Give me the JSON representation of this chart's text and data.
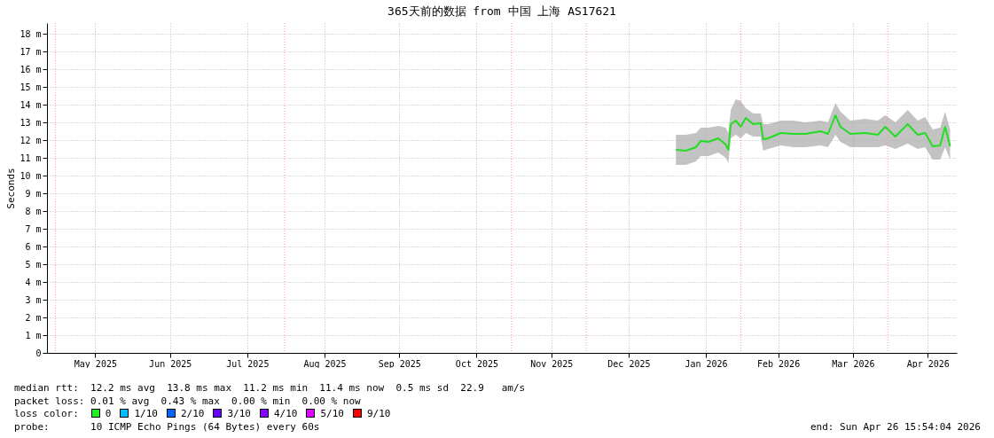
{
  "chart_data": {
    "type": "line",
    "title": "365天前的数据 from 中国 上海 AS17621",
    "ylabel": "Seconds",
    "x": [
      "2026-01-04",
      "2026-01-08",
      "2026-01-12",
      "2026-01-14",
      "2026-01-17",
      "2026-01-21",
      "2026-01-24",
      "2026-01-25",
      "2026-01-26",
      "2026-01-28",
      "2026-01-30",
      "2026-02-01",
      "2026-02-04",
      "2026-02-07",
      "2026-02-08",
      "2026-02-10",
      "2026-02-15",
      "2026-02-20",
      "2026-02-25",
      "2026-03-03",
      "2026-03-06",
      "2026-03-09",
      "2026-03-11",
      "2026-03-15",
      "2026-03-21",
      "2026-03-26",
      "2026-03-29",
      "2026-04-02",
      "2026-04-07",
      "2026-04-11",
      "2026-04-14",
      "2026-04-17",
      "2026-04-20",
      "2026-04-22",
      "2026-04-24"
    ],
    "series": [
      {
        "color": "#22dd22",
        "values": [
          11.45,
          11.4,
          11.6,
          11.95,
          11.9,
          12.1,
          11.75,
          11.45,
          12.9,
          13.1,
          12.75,
          13.25,
          12.9,
          12.95,
          12.05,
          12.1,
          12.4,
          12.35,
          12.35,
          12.5,
          12.35,
          13.4,
          12.75,
          12.35,
          12.4,
          12.3,
          12.75,
          12.2,
          12.9,
          12.3,
          12.4,
          11.65,
          11.7,
          12.75,
          11.65
        ],
        "lower": [
          10.6,
          10.6,
          10.8,
          11.1,
          11.1,
          11.3,
          11.0,
          10.7,
          12.1,
          12.3,
          12.1,
          12.4,
          12.2,
          12.2,
          11.4,
          11.5,
          11.7,
          11.6,
          11.6,
          11.7,
          11.6,
          12.3,
          11.9,
          11.6,
          11.6,
          11.6,
          11.7,
          11.5,
          11.8,
          11.5,
          11.6,
          10.9,
          10.9,
          11.6,
          10.9
        ],
        "upper": [
          12.3,
          12.3,
          12.4,
          12.7,
          12.7,
          12.8,
          12.7,
          12.4,
          13.7,
          14.3,
          14.2,
          13.8,
          13.5,
          13.5,
          12.9,
          12.9,
          13.1,
          13.1,
          13.0,
          13.1,
          13.0,
          14.1,
          13.6,
          13.1,
          13.2,
          13.1,
          13.4,
          13.0,
          13.7,
          13.1,
          13.3,
          12.6,
          12.7,
          13.6,
          12.6
        ]
      }
    ],
    "xlim": [
      "2025-04-26T15:54",
      "2026-04-26T15:54"
    ],
    "xticks": [
      {
        "value": "2025-05-16",
        "label": "May 2025"
      },
      {
        "value": "2025-06-15",
        "label": "Jun 2025"
      },
      {
        "value": "2025-07-16",
        "label": "Jul 2025"
      },
      {
        "value": "2025-08-16",
        "label": "Aug 2025"
      },
      {
        "value": "2025-09-15",
        "label": "Sep 2025"
      },
      {
        "value": "2025-10-16",
        "label": "Oct 2025"
      },
      {
        "value": "2025-11-15",
        "label": "Nov 2025"
      },
      {
        "value": "2025-12-16",
        "label": "Dec 2025"
      },
      {
        "value": "2026-01-16",
        "label": "Jan 2026"
      },
      {
        "value": "2026-02-14",
        "label": "Feb 2026"
      },
      {
        "value": "2026-03-16",
        "label": "Mar 2026"
      },
      {
        "value": "2026-04-15",
        "label": "Apr 2026"
      }
    ],
    "ylim": [
      0,
      18.6
    ],
    "yticks": [
      0,
      {
        "value": 1,
        "label": "1 m"
      },
      {
        "value": 2,
        "label": "2 m"
      },
      {
        "value": 3,
        "label": "3 m"
      },
      {
        "value": 4,
        "label": "4 m"
      },
      {
        "value": 5,
        "label": "5 m"
      },
      {
        "value": 6,
        "label": "6 m"
      },
      {
        "value": 7,
        "label": "7 m"
      },
      {
        "value": 8,
        "label": "8 m"
      },
      {
        "value": 9,
        "label": "9 m"
      },
      {
        "value": 10,
        "label": "10 m"
      },
      {
        "value": 11,
        "label": "11 m"
      },
      {
        "value": 12,
        "label": "12 m"
      },
      {
        "value": 13,
        "label": "13 m"
      },
      {
        "value": 14,
        "label": "14 m"
      },
      {
        "value": 15,
        "label": "15 m"
      },
      {
        "value": 16,
        "label": "16 m"
      },
      {
        "value": 17,
        "label": "17 m"
      },
      {
        "value": 18,
        "label": "18 m"
      }
    ],
    "ref_lines": [
      {
        "axis": "x",
        "value": "2025-04-30",
        "color": "#ff9999",
        "line_style": "dotted"
      },
      {
        "axis": "x",
        "value": "2025-07-31",
        "color": "#ff9999",
        "line_style": "dotted"
      },
      {
        "axis": "x",
        "value": "2025-10-30",
        "color": "#ff9999",
        "line_style": "dotted"
      },
      {
        "axis": "x",
        "value": "2025-11-29",
        "color": "#ff9999",
        "line_style": "dotted"
      },
      {
        "axis": "x",
        "value": "2026-01-30",
        "color": "#ff9999",
        "line_style": "dotted"
      },
      {
        "axis": "x",
        "value": "2026-03-30",
        "color": "#ff9999",
        "line_style": "dotted"
      }
    ],
    "grid": true,
    "marker": "none",
    "line_style": "solid",
    "annotations": [
      "median rtt:  12.2 ms avg  13.8 ms max  11.2 ms min  11.4 ms now  0.5 ms sd  22.9   am/s",
      "packet loss: 0.01 % avg  0.43 % max  0.00 % min  0.00 % now",
      "loss color:",
      "0",
      "1/10",
      "2/10",
      "3/10",
      "4/10",
      "5/10",
      "9/10",
      "probe:       10 ICMP Echo Pings (64 Bytes) every 60s",
      "end: Sun Apr 26 15:54:04 2026"
    ]
  }
}
